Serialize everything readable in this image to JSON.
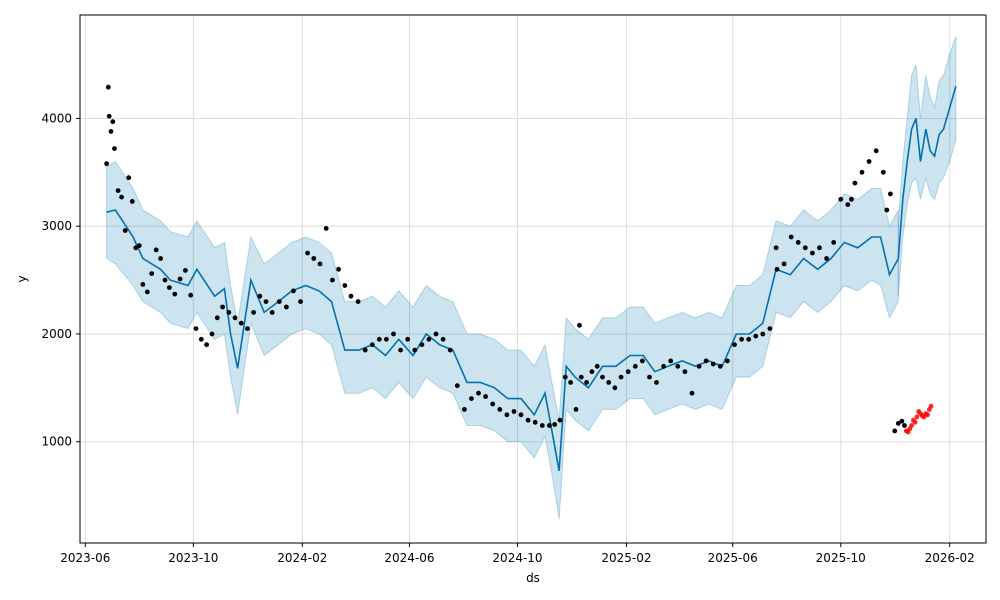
{
  "chart_data": {
    "type": "line",
    "title": "",
    "xlabel": "ds",
    "ylabel": "y",
    "xlim": [
      "2023-05-26",
      "2026-03-14"
    ],
    "ylim": [
      60,
      4960
    ],
    "grid": true,
    "colors": {
      "forecast": "#0072B2",
      "interval": "#0072B2",
      "history": "#000000",
      "test": "#ff0000",
      "grid": "#dddddd"
    },
    "x_ticks": [
      {
        "date": "2023-06-01",
        "label": "2023-06"
      },
      {
        "date": "2023-10-01",
        "label": "2023-10"
      },
      {
        "date": "2024-02-01",
        "label": "2024-02"
      },
      {
        "date": "2024-06-01",
        "label": "2024-06"
      },
      {
        "date": "2024-10-01",
        "label": "2024-10"
      },
      {
        "date": "2025-02-01",
        "label": "2025-02"
      },
      {
        "date": "2025-06-01",
        "label": "2025-06"
      },
      {
        "date": "2025-10-01",
        "label": "2025-10"
      },
      {
        "date": "2026-02-01",
        "label": "2026-02"
      }
    ],
    "y_ticks": [
      {
        "value": 1000,
        "label": "1000"
      },
      {
        "value": 2000,
        "label": "2000"
      },
      {
        "value": 3000,
        "label": "3000"
      },
      {
        "value": 4000,
        "label": "4000"
      }
    ],
    "forecast": {
      "x": [
        "2023-06-25",
        "2023-07-05",
        "2023-07-25",
        "2023-08-05",
        "2023-08-25",
        "2023-09-05",
        "2023-09-25",
        "2023-10-05",
        "2023-10-25",
        "2023-11-05",
        "2023-11-12",
        "2023-11-20",
        "2023-12-05",
        "2023-12-20",
        "2024-01-05",
        "2024-01-20",
        "2024-02-05",
        "2024-02-20",
        "2024-03-05",
        "2024-03-20",
        "2024-04-05",
        "2024-04-20",
        "2024-05-05",
        "2024-05-20",
        "2024-06-05",
        "2024-06-20",
        "2024-07-05",
        "2024-07-20",
        "2024-08-05",
        "2024-08-20",
        "2024-09-05",
        "2024-09-20",
        "2024-10-05",
        "2024-10-20",
        "2024-11-01",
        "2024-11-10",
        "2024-11-17",
        "2024-11-25",
        "2024-12-05",
        "2024-12-20",
        "2025-01-05",
        "2025-01-20",
        "2025-02-05",
        "2025-02-20",
        "2025-03-05",
        "2025-03-20",
        "2025-04-05",
        "2025-04-20",
        "2025-05-05",
        "2025-05-20",
        "2025-06-05",
        "2025-06-20",
        "2025-07-05",
        "2025-07-20",
        "2025-08-05",
        "2025-08-20",
        "2025-09-05",
        "2025-09-20",
        "2025-10-05",
        "2025-10-20",
        "2025-11-05",
        "2025-11-15",
        "2025-11-25",
        "2025-12-05"
      ],
      "y": [
        3130,
        3150,
        2900,
        2700,
        2600,
        2500,
        2450,
        2600,
        2350,
        2420,
        2000,
        1680,
        2500,
        2200,
        2300,
        2400,
        2450,
        2400,
        2300,
        1850,
        1850,
        1900,
        1800,
        1950,
        1800,
        2000,
        1900,
        1850,
        1550,
        1550,
        1500,
        1400,
        1400,
        1250,
        1450,
        1050,
        730,
        1700,
        1600,
        1500,
        1700,
        1700,
        1800,
        1800,
        1650,
        1700,
        1750,
        1700,
        1750,
        1700,
        2000,
        2000,
        2100,
        2600,
        2550,
        2700,
        2600,
        2700,
        2850,
        2800,
        2900,
        2900,
        2550,
        2700
      ],
      "lower": [
        2700,
        2650,
        2450,
        2300,
        2200,
        2100,
        2050,
        2200,
        1950,
        2000,
        1600,
        1250,
        2100,
        1800,
        1900,
        2000,
        2050,
        2000,
        1900,
        1450,
        1450,
        1500,
        1400,
        1550,
        1400,
        1600,
        1500,
        1450,
        1150,
        1150,
        1100,
        1000,
        1000,
        850,
        1050,
        650,
        280,
        1300,
        1200,
        1100,
        1300,
        1300,
        1400,
        1400,
        1250,
        1300,
        1350,
        1300,
        1350,
        1300,
        1600,
        1600,
        1700,
        2200,
        2150,
        2300,
        2200,
        2300,
        2450,
        2400,
        2500,
        2450,
        2150,
        2300
      ],
      "upper": [
        3550,
        3600,
        3350,
        3150,
        3050,
        2950,
        2900,
        3050,
        2800,
        2850,
        2450,
        2100,
        2900,
        2650,
        2750,
        2850,
        2900,
        2850,
        2750,
        2300,
        2300,
        2350,
        2250,
        2400,
        2250,
        2450,
        2350,
        2300,
        2000,
        2000,
        1950,
        1850,
        1850,
        1700,
        1900,
        1500,
        1200,
        2150,
        2050,
        1950,
        2150,
        2150,
        2250,
        2250,
        2100,
        2150,
        2200,
        2150,
        2200,
        2150,
        2450,
        2450,
        2550,
        3050,
        3000,
        3150,
        3050,
        3150,
        3300,
        3250,
        3350,
        3350,
        3000,
        3150
      ]
    },
    "future": {
      "x": [
        "2025-12-05",
        "2025-12-10",
        "2025-12-15",
        "2025-12-20",
        "2025-12-25",
        "2025-12-30",
        "2026-01-05",
        "2026-01-10",
        "2026-01-15",
        "2026-01-20",
        "2026-01-25",
        "2026-02-01",
        "2026-02-08"
      ],
      "y": [
        2700,
        3250,
        3600,
        3900,
        4000,
        3600,
        3900,
        3700,
        3650,
        3850,
        3900,
        4100,
        4300
      ],
      "lower": [
        2350,
        2900,
        3200,
        3400,
        3450,
        3250,
        3450,
        3300,
        3250,
        3400,
        3450,
        3600,
        3800
      ],
      "upper": [
        3050,
        3600,
        4000,
        4400,
        4500,
        4000,
        4400,
        4200,
        4100,
        4350,
        4400,
        4600,
        4760
      ]
    },
    "history": {
      "x": [
        "2023-06-25",
        "2023-06-27",
        "2023-06-28",
        "2023-06-30",
        "2023-07-02",
        "2023-07-04",
        "2023-07-08",
        "2023-07-12",
        "2023-07-16",
        "2023-07-20",
        "2023-07-24",
        "2023-07-28",
        "2023-08-01",
        "2023-08-05",
        "2023-08-10",
        "2023-08-15",
        "2023-08-20",
        "2023-08-25",
        "2023-08-30",
        "2023-09-04",
        "2023-09-10",
        "2023-09-16",
        "2023-09-22",
        "2023-09-28",
        "2023-10-04",
        "2023-10-10",
        "2023-10-16",
        "2023-10-22",
        "2023-10-28",
        "2023-11-03",
        "2023-11-10",
        "2023-11-17",
        "2023-11-24",
        "2023-12-01",
        "2023-12-08",
        "2023-12-15",
        "2023-12-22",
        "2023-12-29",
        "2024-01-06",
        "2024-01-14",
        "2024-01-22",
        "2024-01-30",
        "2024-02-07",
        "2024-02-14",
        "2024-02-21",
        "2024-02-28",
        "2024-03-06",
        "2024-03-13",
        "2024-03-20",
        "2024-03-27",
        "2024-04-04",
        "2024-04-12",
        "2024-04-20",
        "2024-04-28",
        "2024-05-06",
        "2024-05-14",
        "2024-05-22",
        "2024-05-30",
        "2024-06-07",
        "2024-06-15",
        "2024-06-23",
        "2024-07-01",
        "2024-07-09",
        "2024-07-17",
        "2024-07-25",
        "2024-08-02",
        "2024-08-10",
        "2024-08-18",
        "2024-08-26",
        "2024-09-03",
        "2024-09-11",
        "2024-09-19",
        "2024-09-27",
        "2024-10-05",
        "2024-10-13",
        "2024-10-21",
        "2024-10-29",
        "2024-11-06",
        "2024-11-12",
        "2024-11-18",
        "2024-11-24",
        "2024-11-30",
        "2024-12-06",
        "2024-12-12",
        "2024-12-18",
        "2024-12-24",
        "2024-12-30",
        "2025-01-05",
        "2025-01-12",
        "2025-01-19",
        "2025-01-26",
        "2025-02-03",
        "2025-02-11",
        "2025-02-19",
        "2025-02-27",
        "2025-03-07",
        "2025-03-15",
        "2025-03-23",
        "2025-03-31",
        "2025-04-08",
        "2025-04-16",
        "2025-04-24",
        "2025-05-02",
        "2025-05-10",
        "2025-05-18",
        "2025-05-26",
        "2025-06-03",
        "2025-06-11",
        "2025-06-19",
        "2025-06-27",
        "2025-07-05",
        "2025-07-13",
        "2025-07-21",
        "2025-07-29",
        "2025-08-06",
        "2025-08-14",
        "2025-08-22",
        "2025-08-30",
        "2025-09-07",
        "2025-09-15",
        "2025-09-23",
        "2025-10-01",
        "2025-10-09",
        "2025-10-17",
        "2025-10-25",
        "2025-11-02",
        "2025-11-10",
        "2025-11-18",
        "2025-11-26"
      ],
      "y": [
        3580,
        4290,
        4020,
        3880,
        3970,
        3720,
        3330,
        3270,
        2960,
        3450,
        3230,
        2800,
        2820,
        2460,
        2390,
        2560,
        2780,
        2700,
        2500,
        2430,
        2370,
        2510,
        2590,
        2360,
        2050,
        1950,
        1900,
        2000,
        2150,
        2250,
        2200,
        2150,
        2100,
        2050,
        2200,
        2350,
        2300,
        2200,
        2300,
        2250,
        2400,
        2300,
        2750,
        2700,
        2650,
        2980,
        2500,
        2600,
        2450,
        2350,
        2300,
        1850,
        1900,
        1950,
        1950,
        2000,
        1850,
        1950,
        1850,
        1900,
        1950,
        2000,
        1950,
        1850,
        1520,
        1300,
        1400,
        1450,
        1420,
        1350,
        1300,
        1250,
        1280,
        1250,
        1200,
        1180,
        1150,
        1150,
        1160,
        1200,
        1600,
        1550,
        1300,
        1600,
        1550,
        1650,
        1700,
        1600,
        1550,
        1500,
        1600,
        1650,
        1700,
        1750,
        1600,
        1550,
        1700,
        1750,
        1700,
        1650,
        1450,
        1700,
        1750,
        1720,
        1700,
        1750,
        1900,
        1950,
        1950,
        1980,
        2000,
        2050,
        2600,
        2650,
        2900,
        2850,
        2800,
        2750,
        2800,
        2700,
        2850,
        3250,
        3200,
        3400,
        3500,
        3600,
        3700,
        3500,
        3300
      ],
      "y_extra": [
        {
          "x": "2024-12-10",
          "y": 2080
        },
        {
          "x": "2025-07-20",
          "y": 2800
        },
        {
          "x": "2025-10-13",
          "y": 3250
        },
        {
          "x": "2025-11-22",
          "y": 3150
        },
        {
          "x": "2025-12-01",
          "y": 1100
        },
        {
          "x": "2025-12-05",
          "y": 1170
        },
        {
          "x": "2025-12-09",
          "y": 1190
        },
        {
          "x": "2025-12-12",
          "y": 1150
        }
      ]
    },
    "test": {
      "x": [
        "2025-12-14",
        "2025-12-16",
        "2025-12-18",
        "2025-12-20",
        "2025-12-22",
        "2025-12-24",
        "2025-12-26",
        "2025-12-28",
        "2025-12-30",
        "2026-01-01",
        "2026-01-03",
        "2026-01-05",
        "2026-01-07",
        "2026-01-09",
        "2026-01-11"
      ],
      "y": [
        1100,
        1090,
        1120,
        1150,
        1200,
        1180,
        1230,
        1280,
        1260,
        1240,
        1230,
        1260,
        1250,
        1300,
        1330
      ]
    }
  }
}
